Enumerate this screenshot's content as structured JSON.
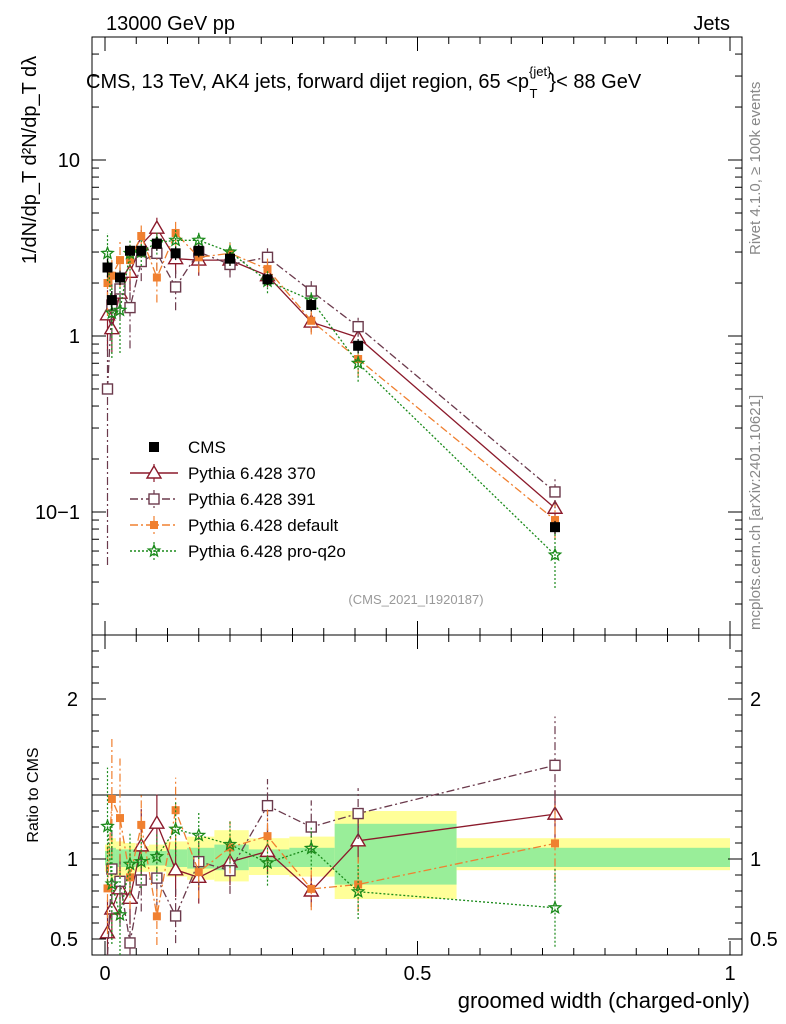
{
  "header": {
    "left": "13000 GeV pp",
    "right": "Jets",
    "title": "CMS, 13 TeV, AK4 jets, forward dijet region, 65 <p",
    "title_sup": "{jet}",
    "title_sub": "T",
    "title_end": "}< 88 GeV",
    "side_rivet": "Rivet 4.1.0, ≥ 100k events",
    "side_mcplots": "mcplots.cern.ch [arXiv:2401.10621]",
    "analysis": "(CMS_2021_I1920187)"
  },
  "axes": {
    "xlabel": "groomed width (charged-only)",
    "ratio_ylabel": "Ratio to CMS",
    "ylabel_main": "1/dN/dp_T  d²N/dp_T dλ",
    "main_ticks": [
      "10−1",
      "1",
      "10"
    ],
    "ratio_ticks": [
      "0.5",
      "1",
      "2"
    ],
    "x_ticks": [
      "0",
      "0.5",
      "1"
    ]
  },
  "legend": [
    {
      "label": "CMS",
      "color": "#000000",
      "marker": "square",
      "dash": ""
    },
    {
      "label": "Pythia 6.428 370",
      "color": "#8b1a2b",
      "marker": "triangle",
      "dash": ""
    },
    {
      "label": "Pythia 6.428 391",
      "color": "#6b3a4c",
      "marker": "open-square",
      "dash": "8,3,2,3"
    },
    {
      "label": "Pythia 6.428 default",
      "color": "#f08030",
      "marker": "filled-square",
      "dash": "8,3,2,3"
    },
    {
      "label": "Pythia 6.428 pro-q2o",
      "color": "#1a8a1a",
      "marker": "star",
      "dash": "2,2"
    }
  ],
  "chart_data": {
    "type": "line",
    "title": "CMS, 13 TeV, AK4 jets, forward dijet region, 65 <pT{jet}< 88 GeV",
    "xlabel": "groomed width (charged-only)",
    "ylabel": "1/dN/dpT d2N/dpT dlambda",
    "xlim": [
      0,
      1
    ],
    "ylim": [
      0.02,
      50
    ],
    "yscale": "log",
    "ratio_ylim": [
      0.4,
      2.4
    ],
    "x": [
      0.004,
      0.011,
      0.024,
      0.04,
      0.058,
      0.083,
      0.113,
      0.15,
      0.2,
      0.26,
      0.33,
      0.405,
      0.72
    ],
    "data": {
      "values": [
        2.45,
        1.6,
        2.15,
        3.05,
        3.05,
        3.35,
        2.95,
        3.05,
        2.75,
        2.1,
        1.5,
        0.88,
        0.082
      ],
      "errors": [
        0.3,
        0.2,
        0.2,
        0.2,
        0.2,
        0.3,
        0.25,
        0.25,
        0.25,
        0.15,
        0.12,
        0.08,
        0.007
      ],
      "sys_hi": [
        1.09,
        1.13,
        1.11,
        1.1,
        1.08,
        1.09,
        1.11,
        1.14,
        1.18,
        1.13,
        1.14,
        1.3,
        1.13
      ],
      "sys_lo": [
        0.92,
        0.88,
        0.89,
        0.9,
        0.92,
        0.92,
        0.89,
        0.87,
        0.86,
        0.9,
        0.89,
        0.75,
        0.93
      ],
      "stat_hi": [
        1.05,
        1.07,
        1.06,
        1.06,
        1.05,
        1.05,
        1.06,
        1.07,
        1.09,
        1.06,
        1.07,
        1.22,
        1.07
      ],
      "stat_lo": [
        0.96,
        0.94,
        0.95,
        0.95,
        0.96,
        0.96,
        0.95,
        0.94,
        0.93,
        0.95,
        0.95,
        0.84,
        0.95
      ]
    },
    "series": [
      {
        "name": "Pythia 6.428 370",
        "values": [
          1.32,
          1.1,
          1.75,
          2.3,
          3.3,
          4.1,
          2.75,
          2.7,
          2.7,
          2.2,
          1.2,
          0.98,
          0.105
        ],
        "errors": [
          0.5,
          0.3,
          0.45,
          0.5,
          0.7,
          0.6,
          0.5,
          0.5,
          0.4,
          0.3,
          0.15,
          0.12,
          0.012
        ]
      },
      {
        "name": "Pythia 6.428 391",
        "values": [
          0.5,
          1.5,
          1.85,
          1.45,
          2.65,
          2.95,
          1.9,
          3.0,
          2.55,
          2.8,
          1.8,
          1.13,
          0.13
        ],
        "errors": [
          0.45,
          0.5,
          0.6,
          0.6,
          0.6,
          0.6,
          0.5,
          0.5,
          0.4,
          0.35,
          0.25,
          0.14,
          0.025
        ]
      },
      {
        "name": "Pythia 6.428 default",
        "values": [
          2.0,
          2.2,
          2.7,
          2.7,
          3.7,
          2.15,
          3.85,
          2.8,
          2.95,
          2.4,
          1.22,
          0.74,
          0.09
        ],
        "errors": [
          0.7,
          0.6,
          0.8,
          0.6,
          0.6,
          0.6,
          0.6,
          0.5,
          0.45,
          0.35,
          0.2,
          0.15,
          0.02
        ]
      },
      {
        "name": "Pythia 6.428 pro-q2o",
        "values": [
          2.95,
          1.35,
          1.4,
          2.95,
          3.0,
          3.4,
          3.5,
          3.5,
          3.0,
          2.05,
          1.6,
          0.7,
          0.057
        ],
        "errors": [
          0.9,
          0.6,
          0.6,
          0.6,
          0.5,
          0.5,
          0.5,
          0.45,
          0.4,
          0.3,
          0.2,
          0.15,
          0.02
        ]
      }
    ]
  }
}
